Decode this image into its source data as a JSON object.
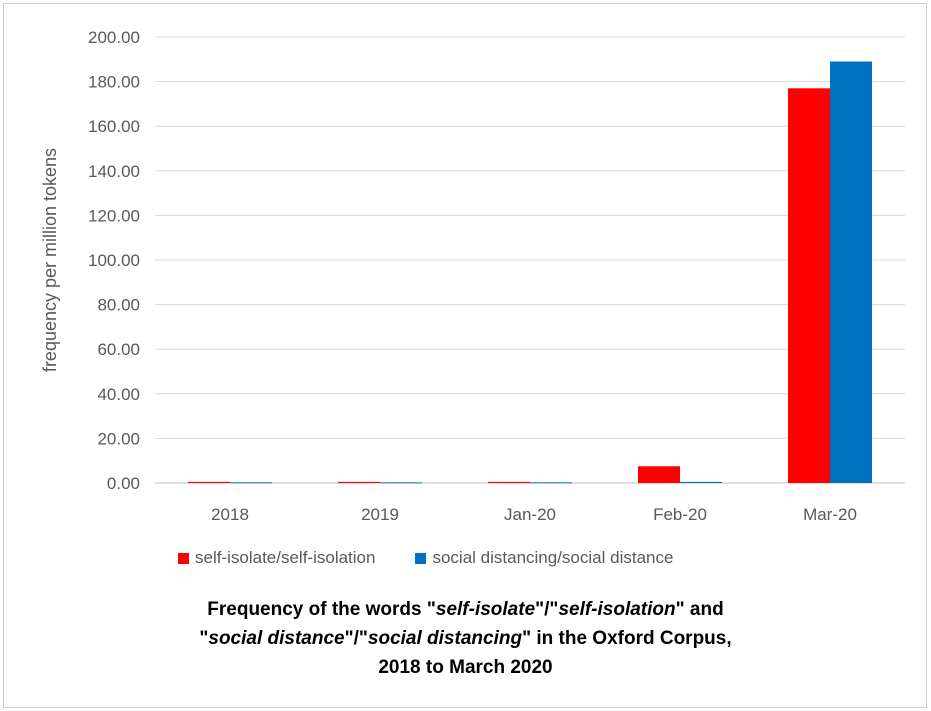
{
  "chart_data": {
    "type": "bar",
    "categories": [
      "2018",
      "2019",
      "Jan-20",
      "Feb-20",
      "Mar-20"
    ],
    "series": [
      {
        "name": "self-isolate/self-isolation",
        "color": "#ff0000",
        "values": [
          0.5,
          0.5,
          0.5,
          7.5,
          177.0
        ]
      },
      {
        "name": "social distancing/social distance",
        "color": "#0070c0",
        "values": [
          0.3,
          0.3,
          0.3,
          0.5,
          189.0
        ]
      }
    ],
    "ylabel": "frequency per million tokens",
    "xlabel": "",
    "ylim": [
      0,
      200
    ],
    "yticks": [
      "0.00",
      "20.00",
      "40.00",
      "60.00",
      "80.00",
      "100.00",
      "120.00",
      "140.00",
      "160.00",
      "180.00",
      "200.00"
    ],
    "grid": true,
    "legend_position": "bottom"
  },
  "caption": {
    "line1_a": "Frequency of the words \"",
    "line1_b": "self-isolate",
    "line1_c": "\"/\"",
    "line1_d": "self-isolation",
    "line1_e": "\" and",
    "line2_a": "\"",
    "line2_b": "social distance",
    "line2_c": "\"/\"",
    "line2_d": "social distancing",
    "line2_e": "\" in the Oxford Corpus,",
    "line3": "2018 to March 2020"
  }
}
